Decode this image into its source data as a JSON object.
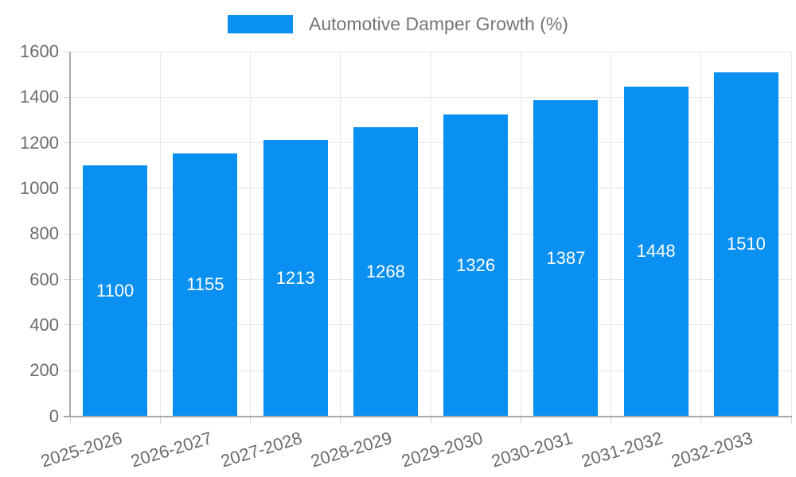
{
  "legend": {
    "label": "Automotive Damper Growth (%)"
  },
  "chart_data": {
    "type": "bar",
    "title": "",
    "categories": [
      "2025-2026",
      "2026-2027",
      "2027-2028",
      "2028-2029",
      "2029-2030",
      "2030-2031",
      "2031-2032",
      "2032-2033"
    ],
    "values": [
      1100,
      1155,
      1213,
      1268,
      1326,
      1387,
      1448,
      1510
    ],
    "series_name": "Automotive Damper Growth (%)",
    "value_labels_shown": true,
    "xlabel": "",
    "ylabel": "",
    "ylim": [
      0,
      1600
    ],
    "ytick_step": 200,
    "yticks": [
      0,
      200,
      400,
      600,
      800,
      1000,
      1200,
      1400,
      1600
    ],
    "grid": true,
    "legend_position": "top-center",
    "colors": {
      "bar": "#0a90f1",
      "value_label": "#ffffff",
      "axis_text": "#6b6b6b",
      "legend_text": "#757575",
      "grid_line": "#e6e6e6",
      "tick_line": "#d0d0d0",
      "axis_line": "#a8a8a8"
    }
  }
}
